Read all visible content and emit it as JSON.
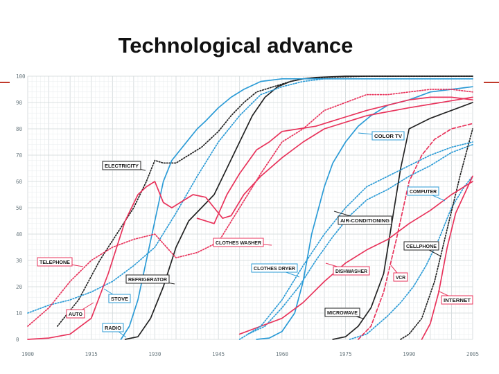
{
  "slide": {
    "title": "Technological advance"
  },
  "chart_data": {
    "type": "line",
    "title": "Technological advance",
    "xlabel": "",
    "ylabel": "",
    "xlim": [
      1900,
      2005
    ],
    "ylim": [
      0,
      100
    ],
    "x_ticks": [
      1900,
      1915,
      1930,
      1945,
      1960,
      1975,
      1990,
      2005
    ],
    "y_ticks": [
      0,
      10,
      20,
      30,
      40,
      50,
      60,
      70,
      80,
      90,
      100
    ],
    "grid": true,
    "series": [
      {
        "name": "ELECTRICITY",
        "color": "#222222",
        "dash": "dotted",
        "x": [
          1907,
          1912,
          1917,
          1921,
          1925,
          1928,
          1930,
          1932,
          1935,
          1938,
          1941,
          1945,
          1948,
          1951,
          1954,
          1958,
          1962,
          1965,
          1970,
          1980,
          1990,
          2005
        ],
        "y": [
          5,
          15,
          30,
          40,
          50,
          60,
          68,
          67,
          67,
          70,
          73,
          79,
          85,
          90,
          94,
          96,
          98,
          99,
          99.5,
          100,
          100,
          100
        ]
      },
      {
        "name": "COLOR TV",
        "color": "#2b9bd6",
        "dash": "solid",
        "x": [
          1954,
          1957,
          1960,
          1963,
          1965,
          1967,
          1970,
          1972,
          1975,
          1978,
          1981,
          1985,
          1990,
          1995,
          2000,
          2005
        ],
        "y": [
          0,
          0.5,
          3,
          10,
          22,
          40,
          58,
          67,
          75,
          81,
          85,
          89,
          91,
          94,
          95,
          96
        ]
      },
      {
        "name": "COMPUTER",
        "color": "#2b9bd6",
        "dash": "dotted",
        "x": [
          1976,
          1980,
          1985,
          1988,
          1991,
          1994,
          1997,
          2000,
          2003,
          2005
        ],
        "y": [
          0,
          2,
          9,
          14,
          20,
          28,
          38,
          50,
          58,
          62
        ]
      },
      {
        "name": "AIR-CONDITIONING",
        "color": "#2b9bd6",
        "dash": "dotted",
        "x": [
          1952,
          1956,
          1960,
          1964,
          1968,
          1972,
          1976,
          1980,
          1985,
          1990,
          1995,
          2000,
          2005
        ],
        "y": [
          2,
          5,
          12,
          20,
          30,
          39,
          47,
          53,
          57,
          62,
          66,
          71,
          74
        ]
      },
      {
        "name": "CELLPHONE",
        "color": "#222222",
        "dash": "dotted",
        "x": [
          1988,
          1990,
          1993,
          1996,
          1999,
          2002,
          2005
        ],
        "y": [
          0,
          2,
          8,
          22,
          42,
          62,
          80
        ]
      },
      {
        "name": "VCR",
        "color": "#e8335b",
        "dash": "dashed",
        "x": [
          1978,
          1981,
          1984,
          1987,
          1990,
          1993,
          1996,
          2000,
          2005
        ],
        "y": [
          0,
          5,
          18,
          38,
          60,
          70,
          76,
          80,
          82
        ]
      },
      {
        "name": "INTERNET",
        "color": "#e8335b",
        "dash": "solid",
        "x": [
          1993,
          1995,
          1997,
          1999,
          2001,
          2003,
          2005
        ],
        "y": [
          0,
          6,
          18,
          35,
          48,
          55,
          62
        ]
      },
      {
        "name": "MICROWAVE",
        "color": "#222222",
        "dash": "solid",
        "x": [
          1972,
          1975,
          1978,
          1981,
          1984,
          1986,
          1988,
          1990,
          1995,
          2000,
          2005
        ],
        "y": [
          0,
          1,
          5,
          12,
          25,
          45,
          65,
          80,
          84,
          87,
          90
        ]
      },
      {
        "name": "DISHWASHER",
        "color": "#e8335b",
        "dash": "solid",
        "x": [
          1950,
          1955,
          1960,
          1965,
          1970,
          1975,
          1980,
          1985,
          1990,
          1995,
          2000,
          2005
        ],
        "y": [
          2,
          5,
          8,
          14,
          22,
          29,
          34,
          38,
          44,
          49,
          55,
          60
        ]
      },
      {
        "name": "CLOTHES DRYER",
        "color": "#2b9bd6",
        "dash": "dotted",
        "x": [
          1950,
          1955,
          1960,
          1965,
          1970,
          1975,
          1980,
          1985,
          1990,
          1995,
          2000,
          2005
        ],
        "y": [
          0,
          5,
          15,
          28,
          40,
          50,
          58,
          62,
          66,
          70,
          73,
          75
        ]
      },
      {
        "name": "CLOTHES WASHER",
        "color": "#e8335b",
        "dash": "solid",
        "x": [
          1940,
          1944,
          1947,
          1950,
          1954,
          1957,
          1960,
          1964,
          1968,
          1972,
          1976,
          1980,
          1985,
          1990,
          1995,
          2000,
          2005
        ],
        "y": [
          46,
          44,
          55,
          63,
          72,
          75,
          79,
          80,
          81,
          83,
          85,
          87,
          89,
          91,
          92,
          92,
          91
        ]
      },
      {
        "name": "REFRIGERATOR",
        "color": "#222222",
        "dash": "solid",
        "x": [
          1923,
          1926,
          1929,
          1932,
          1935,
          1938,
          1941,
          1944,
          1947,
          1950,
          1953,
          1956,
          1959,
          1962,
          1965,
          1968,
          1975,
          1990,
          2005
        ],
        "y": [
          0,
          1,
          8,
          20,
          35,
          45,
          50,
          55,
          65,
          75,
          85,
          92,
          96,
          98,
          99,
          99.5,
          100,
          100,
          100
        ]
      },
      {
        "name": "STOVE",
        "color": "#2b9bd6",
        "dash": "dotted",
        "x": [
          1900,
          1905,
          1910,
          1915,
          1920,
          1925,
          1930,
          1935,
          1940,
          1945,
          1950,
          1955,
          1960,
          1965,
          1970,
          1980,
          1990,
          2005
        ],
        "y": [
          10,
          13,
          15,
          18,
          22,
          28,
          35,
          48,
          62,
          75,
          85,
          93,
          96,
          98,
          99,
          99,
          99,
          99
        ]
      },
      {
        "name": "RADIO",
        "color": "#2b9bd6",
        "dash": "solid",
        "x": [
          1922,
          1924,
          1926,
          1928,
          1930,
          1932,
          1934,
          1936,
          1938,
          1940,
          1942,
          1945,
          1948,
          1951,
          1955,
          1960,
          1965,
          1975,
          1990,
          2005
        ],
        "y": [
          0,
          5,
          15,
          30,
          45,
          60,
          68,
          72,
          76,
          80,
          83,
          88,
          92,
          95,
          98,
          99,
          99,
          99,
          99,
          99
        ]
      },
      {
        "name": "TELEPHONE",
        "color": "#e8335b",
        "dash": "dotted",
        "x": [
          1900,
          1905,
          1910,
          1915,
          1920,
          1925,
          1930,
          1935,
          1940,
          1945,
          1950,
          1955,
          1960,
          1965,
          1970,
          1975,
          1980,
          1985,
          1990,
          1995,
          2000,
          2005
        ],
        "y": [
          5,
          12,
          22,
          30,
          35,
          38,
          40,
          31,
          33,
          37,
          50,
          63,
          75,
          80,
          87,
          90,
          93,
          93,
          94,
          95,
          95,
          94
        ]
      },
      {
        "name": "AUTO",
        "color": "#e8335b",
        "dash": "solid",
        "x": [
          1900,
          1905,
          1910,
          1915,
          1919,
          1923,
          1926,
          1928,
          1930,
          1932,
          1934,
          1936,
          1939,
          1942,
          1944,
          1946,
          1948,
          1951,
          1955,
          1960,
          1965,
          1970,
          1980,
          1990,
          2005
        ],
        "y": [
          0,
          0.5,
          2,
          8,
          25,
          45,
          55,
          58,
          60,
          52,
          50,
          52,
          55,
          54,
          50,
          46,
          47,
          55,
          62,
          69,
          75,
          80,
          85,
          88,
          92
        ]
      }
    ],
    "annotations": [
      "ELECTRICITY",
      "TELEPHONE",
      "AUTO",
      "RADIO",
      "STOVE",
      "REFRIGERATOR",
      "CLOTHES WASHER",
      "CLOTHES DRYER",
      "COLOR TV",
      "AIR-CONDITIONING",
      "DISHWASHER",
      "MICROWAVE",
      "COMPUTER",
      "CELLPHONE",
      "VCR",
      "INTERNET"
    ]
  }
}
